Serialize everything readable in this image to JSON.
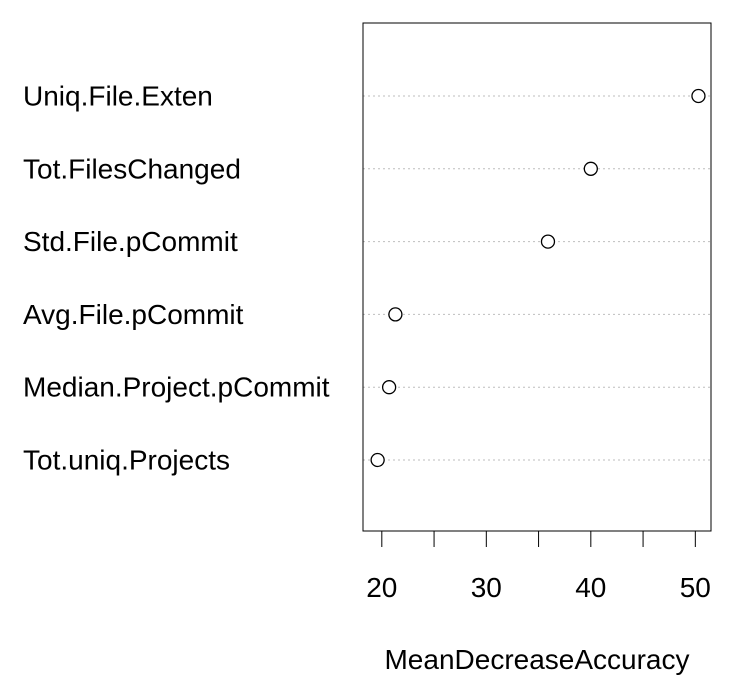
{
  "chart_data": {
    "type": "scatter",
    "subtype": "dotchart",
    "title": "",
    "xlabel": "MeanDecreaseAccuracy",
    "ylabel": "",
    "categories": [
      "Uniq.File.Exten",
      "Tot.FilesChanged",
      "Std.File.pCommit",
      "Avg.File.pCommit",
      "Median.Project.pCommit",
      "Tot.uniq.Projects"
    ],
    "values": [
      50.3,
      40.0,
      35.9,
      21.3,
      20.7,
      19.6
    ],
    "xlim": [
      18.2,
      51.5
    ],
    "xticks": [
      20,
      25,
      30,
      35,
      40,
      45,
      50
    ],
    "xtick_labels": [
      "20",
      "",
      "30",
      "",
      "40",
      "",
      "50"
    ],
    "grid": "horizontal dotted guide lines",
    "legend": "none",
    "colors": {
      "points": "#000000",
      "guides": "#bebebe",
      "frame": "#000000"
    }
  }
}
